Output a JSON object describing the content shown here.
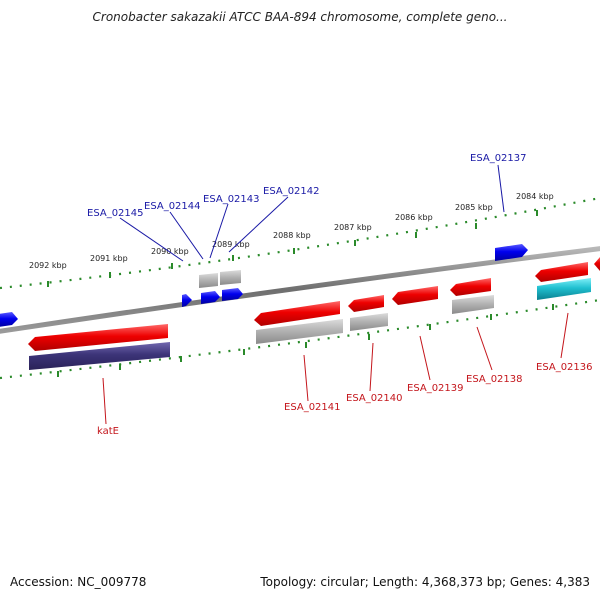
{
  "title": "Cronobacter sakazakii ATCC BAA-894 chromosome, complete geno...",
  "accession": "Accession: NC_009778",
  "topology": "Topology: circular; Length: 4,368,373 bp; Genes: 4,383",
  "colors": {
    "background": "#ffffff",
    "backbone": "#777777",
    "tick": "#2a8a2a",
    "gene_red": "#e00000",
    "gene_blue": "#0000e0",
    "gene_gray": "#a8a8a8",
    "gene_navy": "#3c3478",
    "gene_cyan": "#20b8c8",
    "label_top": "#1a1aa6",
    "label_bottom": "#c4161c"
  },
  "kbp_labels": [
    "2092 kbp",
    "2091 kbp",
    "2090 kbp",
    "2089 kbp",
    "2088 kbp",
    "2087 kbp",
    "2086 kbp",
    "2085 kbp",
    "2084 kbp"
  ],
  "top_strand_labels": [
    "ESA_02145",
    "ESA_02144",
    "ESA_02143",
    "ESA_02142",
    "ESA_02137"
  ],
  "bottom_strand_labels": [
    "katE",
    "ESA_02141",
    "ESA_02140",
    "ESA_02139",
    "ESA_02138",
    "ESA_02136"
  ]
}
